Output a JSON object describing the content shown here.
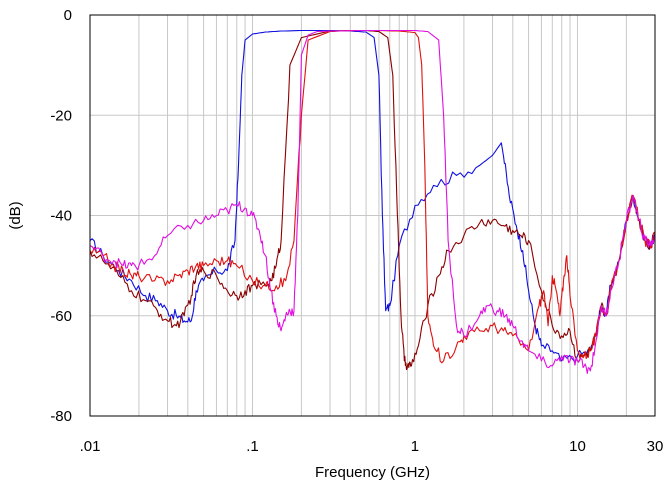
{
  "chart_data": {
    "type": "line",
    "title": "",
    "xlabel": "Frequency (GHz)",
    "ylabel": "(dB)",
    "x_scale": "log",
    "xlim": [
      0.01,
      30
    ],
    "ylim": [
      -80,
      0
    ],
    "x_ticks": [
      {
        "value": 0.01,
        "label": ".01"
      },
      {
        "value": 0.1,
        "label": ".1"
      },
      {
        "value": 1,
        "label": "1"
      },
      {
        "value": 10,
        "label": "10"
      },
      {
        "value": 30,
        "label": "30"
      }
    ],
    "y_ticks": [
      {
        "value": 0,
        "label": "0"
      },
      {
        "value": -20,
        "label": "-20"
      },
      {
        "value": -40,
        "label": "-40"
      },
      {
        "value": -60,
        "label": "-60"
      },
      {
        "value": -80,
        "label": "-80"
      }
    ],
    "grid": true,
    "legend": "none",
    "series": [
      {
        "color": "#1010e0",
        "x": [
          0.01,
          0.012,
          0.015,
          0.018,
          0.022,
          0.026,
          0.03,
          0.034,
          0.038,
          0.042,
          0.045,
          0.05,
          0.06,
          0.07,
          0.078,
          0.082,
          0.086,
          0.09,
          0.1,
          0.12,
          0.15,
          0.2,
          0.3,
          0.4,
          0.5,
          0.56,
          0.6,
          0.63,
          0.66,
          0.7,
          0.8,
          1.0,
          1.3,
          1.8,
          2.5,
          3.0,
          3.4,
          3.5,
          3.8,
          4.2,
          4.6,
          5.0,
          5.5,
          6.0,
          7.0,
          8.0,
          10.0,
          12.0,
          13.0,
          14.0,
          15.0,
          16.0,
          18.0,
          20.0,
          22.0,
          24.0,
          26.0,
          28.0,
          30.0
        ],
        "y": [
          -45,
          -48,
          -51,
          -53,
          -56,
          -57,
          -59,
          -60,
          -61,
          -61,
          -55,
          -53,
          -51,
          -51,
          -45,
          -30,
          -12,
          -5,
          -3.8,
          -3.4,
          -3.2,
          -3.1,
          -3.1,
          -3.2,
          -3.4,
          -4.5,
          -12,
          -40,
          -59,
          -58,
          -46,
          -38,
          -34,
          -32,
          -30,
          -28,
          -25.5,
          -28,
          -36,
          -42,
          -47,
          -55,
          -62,
          -66,
          -67,
          -69,
          -68,
          -67,
          -64,
          -58,
          -60,
          -54,
          -49,
          -41,
          -36,
          -41,
          -45,
          -46,
          -44
        ]
      },
      {
        "color": "#8b0000",
        "x": [
          0.01,
          0.012,
          0.015,
          0.018,
          0.022,
          0.026,
          0.03,
          0.034,
          0.038,
          0.042,
          0.045,
          0.05,
          0.06,
          0.07,
          0.08,
          0.09,
          0.1,
          0.12,
          0.13,
          0.14,
          0.15,
          0.17,
          0.2,
          0.3,
          0.4,
          0.5,
          0.6,
          0.68,
          0.73,
          0.78,
          0.82,
          0.86,
          0.9,
          0.95,
          1.05,
          1.2,
          1.4,
          1.6,
          2.0,
          2.5,
          3.0,
          3.5,
          4.0,
          4.5,
          5.0,
          6.0,
          7.0,
          8.0,
          9.0,
          10.0,
          11.0,
          12.0,
          13.0,
          14.0,
          15.0,
          16.0,
          18.0,
          20.0,
          22.0,
          24.0,
          26.0,
          28.0,
          30.0
        ],
        "y": [
          -47,
          -49,
          -52,
          -55,
          -57,
          -59,
          -61,
          -62,
          -60,
          -56,
          -52,
          -51,
          -52,
          -55,
          -56,
          -55,
          -54,
          -54,
          -53,
          -50,
          -45,
          -10,
          -4.5,
          -3.2,
          -3.1,
          -3.1,
          -3.3,
          -4.5,
          -12,
          -40,
          -60,
          -69,
          -70,
          -70,
          -66,
          -58,
          -52,
          -47,
          -44,
          -41.5,
          -41,
          -42,
          -43,
          -44,
          -45,
          -55,
          -62,
          -64,
          -63,
          -69,
          -68,
          -67,
          -64,
          -58,
          -60,
          -55,
          -49,
          -41,
          -36,
          -41,
          -45,
          -46,
          -44
        ]
      },
      {
        "color": "#e01010",
        "x": [
          0.01,
          0.012,
          0.014,
          0.016,
          0.018,
          0.02,
          0.025,
          0.03,
          0.035,
          0.04,
          0.045,
          0.05,
          0.06,
          0.07,
          0.08,
          0.1,
          0.12,
          0.14,
          0.16,
          0.18,
          0.2,
          0.22,
          0.3,
          0.4,
          0.5,
          0.6,
          0.8,
          1.0,
          1.05,
          1.1,
          1.15,
          1.2,
          1.3,
          1.5,
          1.8,
          2.0,
          2.5,
          3.0,
          3.5,
          4.0,
          5.0,
          5.8,
          6.2,
          6.6,
          7.0,
          7.4,
          7.8,
          8.2,
          8.6,
          9.0,
          10.0,
          11.0,
          12.0,
          13.0,
          14.0,
          15.0,
          16.0,
          18.0,
          20.0,
          22.0,
          24.0,
          26.0,
          28.0,
          30.0
        ],
        "y": [
          -47,
          -48,
          -50,
          -51,
          -52,
          -52,
          -53,
          -53,
          -52,
          -51,
          -50,
          -50,
          -49,
          -49,
          -50,
          -53,
          -54,
          -54,
          -53,
          -45,
          -20,
          -5,
          -3.3,
          -3.1,
          -3.1,
          -3.1,
          -3.2,
          -3.5,
          -4.5,
          -10,
          -30,
          -60,
          -66,
          -69,
          -66,
          -64,
          -63,
          -62,
          -63,
          -64,
          -67,
          -58,
          -55,
          -62,
          -52,
          -55,
          -60,
          -53,
          -48,
          -56,
          -67,
          -68,
          -67,
          -64,
          -58,
          -60,
          -55,
          -49,
          -41,
          -36,
          -41,
          -45,
          -46,
          -44
        ]
      },
      {
        "color": "#e010e0",
        "x": [
          0.01,
          0.012,
          0.014,
          0.016,
          0.018,
          0.02,
          0.025,
          0.03,
          0.04,
          0.05,
          0.06,
          0.07,
          0.08,
          0.09,
          0.1,
          0.11,
          0.12,
          0.13,
          0.14,
          0.15,
          0.16,
          0.17,
          0.18,
          0.19,
          0.2,
          0.22,
          0.25,
          0.3,
          0.5,
          0.8,
          1.0,
          1.2,
          1.4,
          1.5,
          1.6,
          1.8,
          2.0,
          2.5,
          2.8,
          3.2,
          3.6,
          4.0,
          4.5,
          5.0,
          6.0,
          7.0,
          8.0,
          9.0,
          10.0,
          11.0,
          12.0,
          13.0,
          14.0,
          15.0,
          16.0,
          18.0,
          20.0,
          22.0,
          24.0,
          26.0,
          28.0,
          30.0
        ],
        "y": [
          -46,
          -48,
          -49,
          -50,
          -50,
          -50,
          -48,
          -44,
          -42,
          -41,
          -40,
          -39,
          -38,
          -38.5,
          -40,
          -43,
          -48,
          -55,
          -60,
          -63,
          -60,
          -59,
          -59,
          -40,
          -8,
          -4,
          -3.3,
          -3.2,
          -3.1,
          -3.1,
          -3.1,
          -3.3,
          -5,
          -20,
          -45,
          -62,
          -64,
          -60,
          -58,
          -59,
          -60,
          -62,
          -65,
          -67,
          -69,
          -70,
          -68,
          -69,
          -69,
          -70,
          -71,
          -65,
          -58,
          -60,
          -55,
          -49,
          -41,
          -36,
          -41,
          -45,
          -46,
          -44
        ]
      }
    ]
  }
}
